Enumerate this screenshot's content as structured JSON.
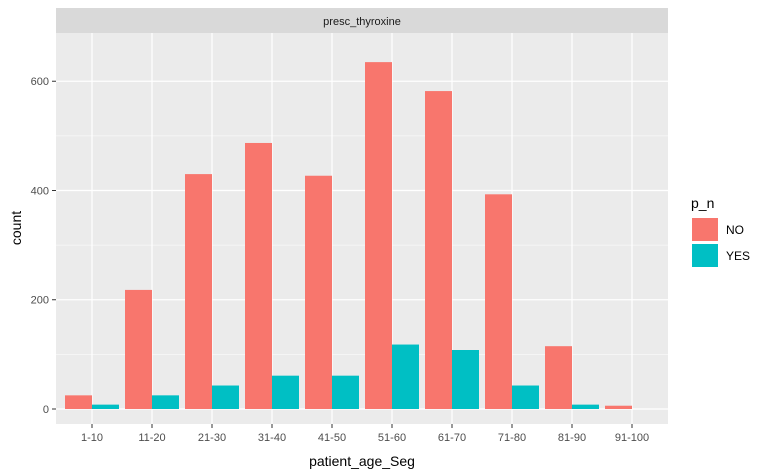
{
  "chart_data": {
    "type": "bar",
    "facet_label": "presc_thyroxine",
    "categories": [
      "1-10",
      "11-20",
      "21-30",
      "31-40",
      "41-50",
      "51-60",
      "61-70",
      "71-80",
      "81-90",
      "91-100"
    ],
    "series": [
      {
        "name": "NO",
        "color": "#F8766D",
        "values": [
          25,
          218,
          430,
          487,
          427,
          635,
          582,
          393,
          115,
          6
        ]
      },
      {
        "name": "YES",
        "color": "#00BFC4",
        "values": [
          8,
          25,
          43,
          61,
          61,
          118,
          108,
          43,
          8,
          0
        ]
      }
    ],
    "xlabel": "patient_age_Seg",
    "ylabel": "count",
    "ylim": [
      0,
      670
    ],
    "yticks": [
      0,
      200,
      400,
      600
    ],
    "grid": true,
    "legend": {
      "title": "p_n",
      "position": "right"
    }
  }
}
